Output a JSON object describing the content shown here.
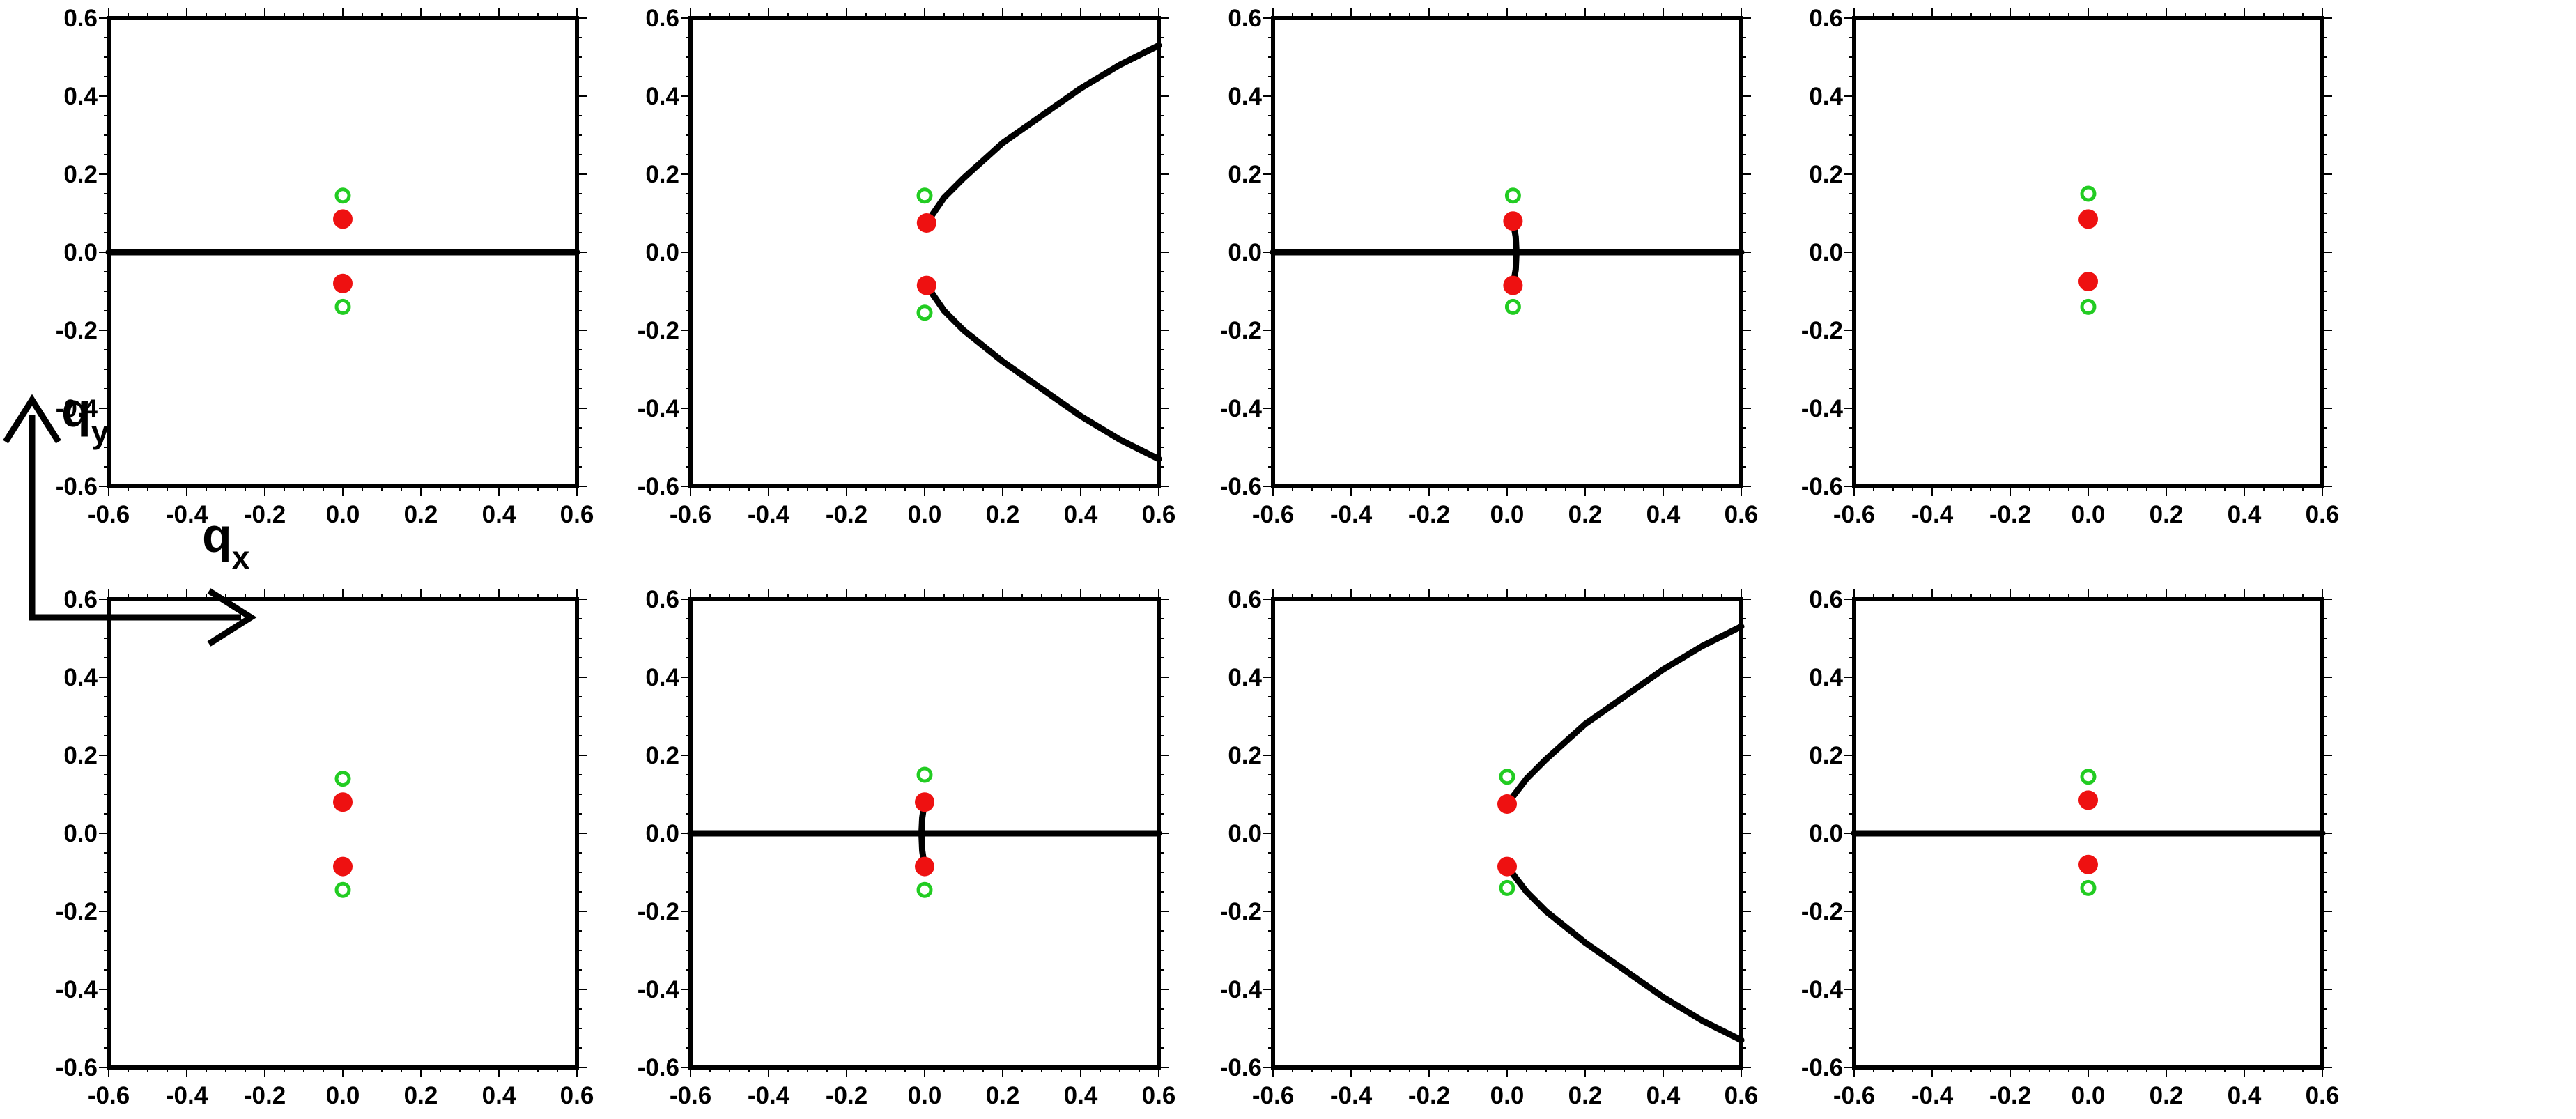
{
  "figure": {
    "axis_labels": {
      "x": "q",
      "x_sub": "x",
      "y": "q",
      "y_sub": "y"
    }
  },
  "colors": {
    "frame": "#000000",
    "curve": "#000000",
    "filled_point": "#ee1111",
    "open_point": "#22cc22"
  },
  "chart_data": [
    {
      "type": "scatter",
      "panel": "row1-col1",
      "xlim": [
        -0.6,
        0.6
      ],
      "ylim": [
        -0.6,
        0.6
      ],
      "xticks": [
        "-0.6",
        "-0.4",
        "-0.2",
        "0.0",
        "0.2",
        "0.4",
        "0.6"
      ],
      "yticks": [
        "-0.6",
        "-0.4",
        "-0.2",
        "0.0",
        "0.2",
        "0.4",
        "0.6"
      ],
      "filled_points": [
        [
          0.0,
          0.085
        ],
        [
          0.0,
          -0.08
        ]
      ],
      "open_points": [
        [
          0.0,
          0.145
        ],
        [
          0.0,
          -0.14
        ]
      ],
      "curves": [
        [
          [
            -0.6,
            0.0
          ],
          [
            0.6,
            0.0
          ]
        ]
      ]
    },
    {
      "type": "scatter",
      "panel": "row1-col2",
      "xlim": [
        -0.6,
        0.6
      ],
      "ylim": [
        -0.6,
        0.6
      ],
      "xticks": [
        "-0.6",
        "-0.4",
        "-0.2",
        "0.0",
        "0.2",
        "0.4",
        "0.6"
      ],
      "yticks": [
        "-0.6",
        "-0.4",
        "-0.2",
        "0.0",
        "0.2",
        "0.4",
        "0.6"
      ],
      "filled_points": [
        [
          0.005,
          0.075
        ],
        [
          0.005,
          -0.085
        ]
      ],
      "open_points": [
        [
          0.0,
          0.145
        ],
        [
          0.0,
          -0.155
        ]
      ],
      "curves": [
        [
          [
            0.005,
            0.075
          ],
          [
            0.05,
            0.14
          ],
          [
            0.1,
            0.19
          ],
          [
            0.2,
            0.28
          ],
          [
            0.3,
            0.35
          ],
          [
            0.4,
            0.42
          ],
          [
            0.5,
            0.48
          ],
          [
            0.6,
            0.53
          ]
        ],
        [
          [
            0.005,
            -0.085
          ],
          [
            0.05,
            -0.15
          ],
          [
            0.1,
            -0.2
          ],
          [
            0.2,
            -0.28
          ],
          [
            0.3,
            -0.35
          ],
          [
            0.4,
            -0.42
          ],
          [
            0.5,
            -0.48
          ],
          [
            0.6,
            -0.53
          ]
        ]
      ]
    },
    {
      "type": "scatter",
      "panel": "row1-col3",
      "xlim": [
        -0.6,
        0.6
      ],
      "ylim": [
        -0.6,
        0.6
      ],
      "xticks": [
        "-0.6",
        "-0.4",
        "-0.2",
        "0.0",
        "0.2",
        "0.4",
        "0.6"
      ],
      "yticks": [
        "-0.6",
        "-0.4",
        "-0.2",
        "0.0",
        "0.2",
        "0.4",
        "0.6"
      ],
      "filled_points": [
        [
          0.015,
          0.08
        ],
        [
          0.015,
          -0.085
        ]
      ],
      "open_points": [
        [
          0.015,
          0.145
        ],
        [
          0.015,
          -0.14
        ]
      ],
      "curves": [
        [
          [
            -0.6,
            0.0
          ],
          [
            0.6,
            0.0
          ]
        ],
        [
          [
            0.015,
            0.08
          ],
          [
            0.022,
            0.04
          ],
          [
            0.024,
            0.0
          ],
          [
            0.022,
            -0.045
          ],
          [
            0.015,
            -0.085
          ]
        ]
      ]
    },
    {
      "type": "scatter",
      "panel": "row1-col4",
      "xlim": [
        -0.6,
        0.6
      ],
      "ylim": [
        -0.6,
        0.6
      ],
      "xticks": [
        "-0.6",
        "-0.4",
        "-0.2",
        "0.0",
        "0.2",
        "0.4",
        "0.6"
      ],
      "yticks": [
        "-0.6",
        "-0.4",
        "-0.2",
        "0.0",
        "0.2",
        "0.4",
        "0.6"
      ],
      "filled_points": [
        [
          0.0,
          0.085
        ],
        [
          0.0,
          -0.075
        ]
      ],
      "open_points": [
        [
          0.0,
          0.15
        ],
        [
          0.0,
          -0.14
        ]
      ],
      "curves": []
    },
    {
      "type": "scatter",
      "panel": "row2-col1",
      "xlim": [
        -0.6,
        0.6
      ],
      "ylim": [
        -0.6,
        0.6
      ],
      "xticks": [
        "-0.6",
        "-0.4",
        "-0.2",
        "0.0",
        "0.2",
        "0.4",
        "0.6"
      ],
      "yticks": [
        "-0.6",
        "-0.4",
        "-0.2",
        "0.0",
        "0.2",
        "0.4",
        "0.6"
      ],
      "filled_points": [
        [
          0.0,
          0.08
        ],
        [
          0.0,
          -0.085
        ]
      ],
      "open_points": [
        [
          0.0,
          0.14
        ],
        [
          0.0,
          -0.145
        ]
      ],
      "curves": []
    },
    {
      "type": "scatter",
      "panel": "row2-col2",
      "xlim": [
        -0.6,
        0.6
      ],
      "ylim": [
        -0.6,
        0.6
      ],
      "xticks": [
        "-0.6",
        "-0.4",
        "-0.2",
        "0.0",
        "0.2",
        "0.4",
        "0.6"
      ],
      "yticks": [
        "-0.6",
        "-0.4",
        "-0.2",
        "0.0",
        "0.2",
        "0.4",
        "0.6"
      ],
      "filled_points": [
        [
          0.0,
          0.08
        ],
        [
          0.0,
          -0.085
        ]
      ],
      "open_points": [
        [
          0.0,
          0.15
        ],
        [
          0.0,
          -0.145
        ]
      ],
      "curves": [
        [
          [
            -0.6,
            0.0
          ],
          [
            0.6,
            0.0
          ]
        ],
        [
          [
            0.0,
            0.08
          ],
          [
            -0.006,
            0.04
          ],
          [
            -0.008,
            0.0
          ],
          [
            -0.006,
            -0.045
          ],
          [
            0.0,
            -0.085
          ]
        ]
      ]
    },
    {
      "type": "scatter",
      "panel": "row2-col3",
      "xlim": [
        -0.6,
        0.6
      ],
      "ylim": [
        -0.6,
        0.6
      ],
      "xticks": [
        "-0.6",
        "-0.4",
        "-0.2",
        "0.0",
        "0.2",
        "0.4",
        "0.6"
      ],
      "yticks": [
        "-0.6",
        "-0.4",
        "-0.2",
        "0.0",
        "0.2",
        "0.4",
        "0.6"
      ],
      "filled_points": [
        [
          0.0,
          0.075
        ],
        [
          0.0,
          -0.085
        ]
      ],
      "open_points": [
        [
          0.0,
          0.145
        ],
        [
          0.0,
          -0.14
        ]
      ],
      "curves": [
        [
          [
            0.0,
            0.075
          ],
          [
            0.05,
            0.14
          ],
          [
            0.1,
            0.19
          ],
          [
            0.2,
            0.28
          ],
          [
            0.3,
            0.35
          ],
          [
            0.4,
            0.42
          ],
          [
            0.5,
            0.48
          ],
          [
            0.6,
            0.53
          ]
        ],
        [
          [
            0.0,
            -0.085
          ],
          [
            0.05,
            -0.15
          ],
          [
            0.1,
            -0.2
          ],
          [
            0.2,
            -0.28
          ],
          [
            0.3,
            -0.35
          ],
          [
            0.4,
            -0.42
          ],
          [
            0.5,
            -0.48
          ],
          [
            0.6,
            -0.53
          ]
        ]
      ]
    },
    {
      "type": "scatter",
      "panel": "row2-col4",
      "xlim": [
        -0.6,
        0.6
      ],
      "ylim": [
        -0.6,
        0.6
      ],
      "xticks": [
        "-0.6",
        "-0.4",
        "-0.2",
        "0.0",
        "0.2",
        "0.4",
        "0.6"
      ],
      "yticks": [
        "-0.6",
        "-0.4",
        "-0.2",
        "0.0",
        "0.2",
        "0.4",
        "0.6"
      ],
      "filled_points": [
        [
          0.0,
          0.085
        ],
        [
          0.0,
          -0.08
        ]
      ],
      "open_points": [
        [
          0.0,
          0.145
        ],
        [
          0.0,
          -0.14
        ]
      ],
      "curves": [
        [
          [
            -0.6,
            0.0
          ],
          [
            0.6,
            0.0
          ]
        ]
      ]
    }
  ]
}
